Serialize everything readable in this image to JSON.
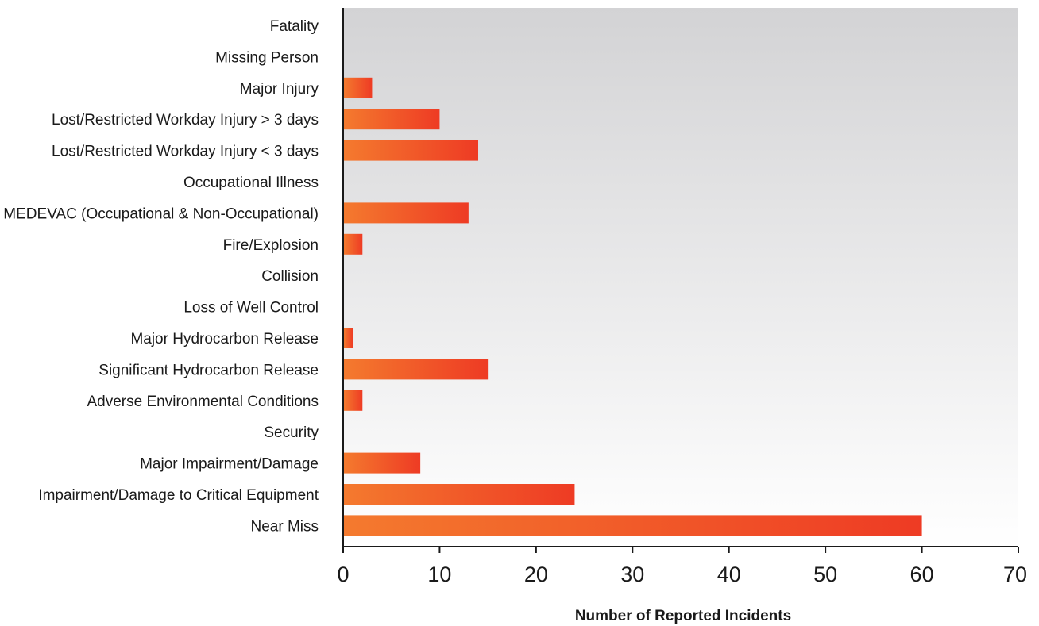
{
  "chart_data": {
    "type": "bar",
    "orientation": "horizontal",
    "categories": [
      "Fatality",
      "Missing Person",
      "Major Injury",
      "Lost/Restricted Workday Injury > 3 days",
      "Lost/Restricted Workday Injury < 3 days",
      "Occupational Illness",
      "MEDEVAC (Occupational & Non-Occupational)",
      "Fire/Explosion",
      "Collision",
      "Loss of Well Control",
      "Major Hydrocarbon Release",
      "Significant Hydrocarbon Release",
      "Adverse Environmental Conditions",
      "Security",
      "Major Impairment/Damage",
      "Impairment/Damage to Critical Equipment",
      "Near Miss"
    ],
    "values": [
      0,
      0,
      3,
      10,
      14,
      0,
      13,
      2,
      0,
      0,
      1,
      15,
      2,
      0,
      8,
      24,
      60
    ],
    "xlabel": "Number of Reported Incidents",
    "ylabel": "",
    "xlim": [
      0,
      70
    ],
    "xticks": [
      0,
      10,
      20,
      30,
      40,
      50,
      60,
      70
    ],
    "grid": false,
    "legend": "none",
    "colors": {
      "bar_start": "#f47a2e",
      "bar_end": "#ee3b24",
      "plot_bg_top": "#d3d3d5",
      "plot_bg_bottom": "#ffffff",
      "axis": "#1a1a1a",
      "text": "#1a1a1a"
    }
  }
}
